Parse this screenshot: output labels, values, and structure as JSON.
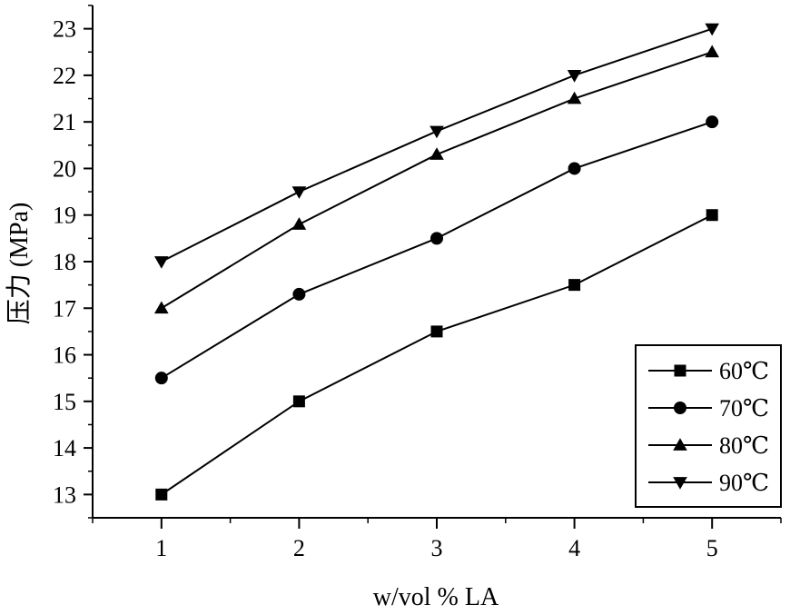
{
  "chart_data": {
    "type": "line",
    "title": "",
    "xlabel": "w/vol % LA",
    "ylabel": "压力 (MPa)",
    "x": [
      1,
      2,
      3,
      4,
      5
    ],
    "xlim": [
      0.5,
      5.5
    ],
    "ylim": [
      12.5,
      23.5
    ],
    "xticks": [
      "1",
      "2",
      "3",
      "4",
      "5"
    ],
    "yticks": [
      "13",
      "14",
      "15",
      "16",
      "17",
      "18",
      "19",
      "20",
      "21",
      "22",
      "23"
    ],
    "grid": false,
    "legend_position": "bottom-right",
    "series": [
      {
        "name": "60℃",
        "marker": "square",
        "values": [
          13.0,
          15.0,
          16.5,
          17.5,
          19.0
        ]
      },
      {
        "name": "70℃",
        "marker": "circle",
        "values": [
          15.5,
          17.3,
          18.5,
          20.0,
          21.0
        ]
      },
      {
        "name": "80℃",
        "marker": "triangle-up",
        "values": [
          17.0,
          18.8,
          20.3,
          21.5,
          22.5
        ]
      },
      {
        "name": "90℃",
        "marker": "triangle-down",
        "values": [
          18.0,
          19.5,
          20.8,
          22.0,
          23.0
        ]
      }
    ],
    "colors": {
      "line": "#000000",
      "marker": "#000000"
    }
  }
}
